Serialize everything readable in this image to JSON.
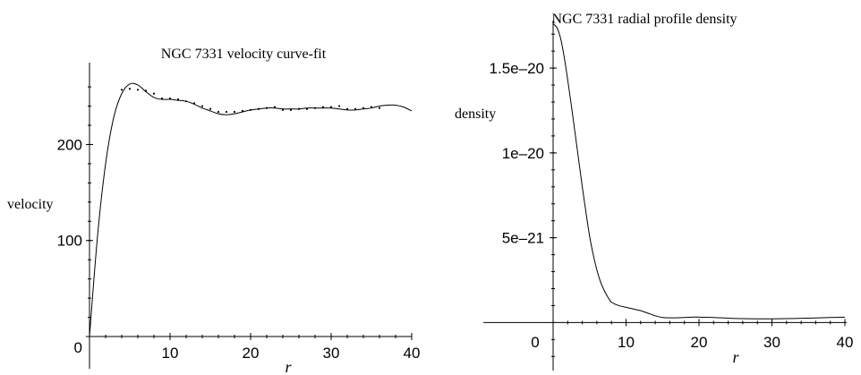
{
  "chart_data": [
    {
      "type": "line",
      "title": "NGC 7331 velocity curve-fit",
      "xlabel": "r",
      "ylabel": "velocity",
      "xlim": [
        0,
        40
      ],
      "ylim": [
        0,
        275
      ],
      "x_ticks": [
        {
          "v": 10,
          "label": "10"
        },
        {
          "v": 20,
          "label": "20"
        },
        {
          "v": 30,
          "label": "30"
        },
        {
          "v": 40,
          "label": "40"
        }
      ],
      "y_ticks": [
        {
          "v": 0,
          "label": "0"
        },
        {
          "v": 100,
          "label": "100"
        },
        {
          "v": 200,
          "label": "200"
        }
      ],
      "grid": false,
      "series": [
        {
          "kind": "curve",
          "x": [
            0,
            1,
            2,
            3,
            4,
            5,
            6,
            7,
            8,
            9,
            10,
            11,
            12,
            13,
            14,
            15,
            16,
            17,
            18,
            19,
            20,
            21,
            22,
            23,
            24,
            25,
            26,
            27,
            28,
            29,
            30,
            31,
            32,
            33,
            34,
            35,
            36,
            37,
            38,
            39,
            40
          ],
          "y": [
            0,
            105,
            180,
            228,
            253,
            263,
            262,
            255,
            249,
            247,
            247,
            246,
            245,
            242,
            238,
            235,
            232,
            231,
            232,
            234,
            236,
            237,
            238,
            238,
            237,
            237,
            237,
            238,
            238,
            238,
            238,
            237,
            236,
            236,
            237,
            238,
            240,
            241,
            241,
            239,
            235
          ]
        },
        {
          "kind": "points",
          "x": [
            4,
            5,
            6,
            7,
            8,
            9,
            10,
            11,
            12,
            13,
            14,
            15,
            16,
            17,
            18,
            19,
            20,
            21,
            22,
            23,
            24,
            25,
            26,
            27,
            28,
            29,
            30,
            31,
            32,
            33,
            34,
            35,
            36
          ],
          "y": [
            257,
            258,
            257,
            256,
            253,
            248,
            248,
            247,
            245,
            243,
            240,
            237,
            234,
            234,
            234,
            235,
            236,
            237,
            238,
            239,
            236,
            236,
            237,
            237,
            238,
            239,
            239,
            240,
            237,
            237,
            238,
            239,
            238
          ]
        }
      ]
    },
    {
      "type": "line",
      "title": "NGC 7331 radial profile density",
      "xlabel": "r",
      "ylabel": "density",
      "xlim": [
        0,
        40
      ],
      "ylim": [
        -2.3e-21,
        1.78e-20
      ],
      "x_ticks": [
        {
          "v": 0,
          "label": "0"
        },
        {
          "v": 10,
          "label": "10"
        },
        {
          "v": 20,
          "label": "20"
        },
        {
          "v": 30,
          "label": "30"
        },
        {
          "v": 40,
          "label": "40"
        }
      ],
      "y_ticks": [
        {
          "v": 5e-21,
          "label": "5e–21"
        },
        {
          "v": 1e-20,
          "label": "1e–20"
        },
        {
          "v": 1.5e-20,
          "label": "1.5e–20"
        }
      ],
      "grid": false,
      "series": [
        {
          "kind": "curve",
          "x": [
            0,
            0.5,
            1,
            1.5,
            2,
            2.5,
            3,
            3.5,
            4,
            4.5,
            5,
            5.5,
            6,
            6.5,
            7,
            7.5,
            8,
            9,
            10,
            11,
            12,
            13,
            14,
            15,
            16,
            17,
            18,
            19,
            20,
            22,
            24,
            26,
            28,
            30,
            32,
            34,
            36,
            38,
            40
          ],
          "y": [
            1.76e-20,
            1.74e-20,
            1.68e-20,
            1.57e-20,
            1.43e-20,
            1.28e-20,
            1.12e-20,
            9.6e-21,
            8e-21,
            6.5e-21,
            5.1e-21,
            4e-21,
            3.1e-21,
            2.4e-21,
            1.9e-21,
            1.5e-21,
            1.2e-21,
            1e-21,
            9e-22,
            8e-22,
            7e-22,
            5.5e-22,
            4e-22,
            3e-22,
            2.8e-22,
            2.8e-22,
            3e-22,
            3.2e-22,
            3.2e-22,
            3e-22,
            2.6e-22,
            2.3e-22,
            2.2e-22,
            2.2e-22,
            2.3e-22,
            2.5e-22,
            2.7e-22,
            3e-22,
            3.2e-22
          ]
        }
      ]
    }
  ]
}
